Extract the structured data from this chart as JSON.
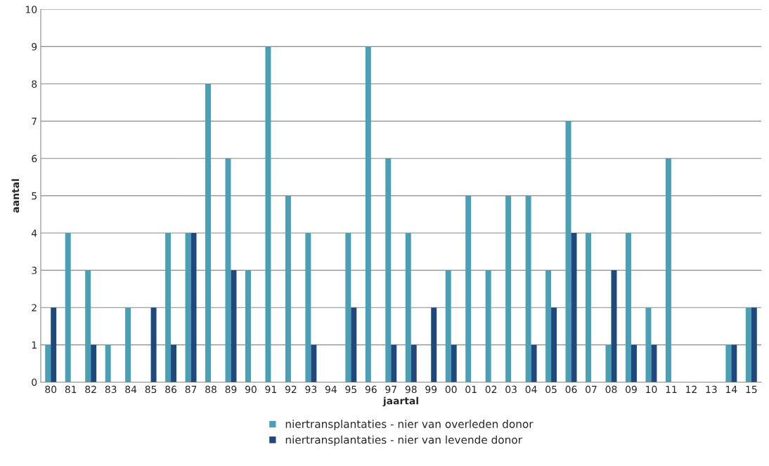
{
  "chart_data": {
    "type": "bar",
    "xlabel": "jaartal",
    "ylabel": "aantal",
    "categories": [
      "80",
      "81",
      "82",
      "83",
      "84",
      "85",
      "86",
      "87",
      "88",
      "89",
      "90",
      "91",
      "92",
      "93",
      "94",
      "95",
      "96",
      "97",
      "98",
      "99",
      "00",
      "01",
      "02",
      "03",
      "04",
      "05",
      "06",
      "07",
      "08",
      "09",
      "10",
      "11",
      "12",
      "13",
      "14",
      "15"
    ],
    "series": [
      {
        "name": "niertransplantaties - nier van overleden donor",
        "color": "#4a9fb5",
        "values": [
          1,
          4,
          3,
          1,
          2,
          0,
          4,
          4,
          8,
          6,
          3,
          9,
          5,
          4,
          0,
          4,
          9,
          6,
          4,
          0,
          3,
          5,
          3,
          5,
          5,
          3,
          7,
          4,
          1,
          4,
          2,
          6,
          0,
          0,
          1,
          2
        ]
      },
      {
        "name": "niertransplantaties - nier van levende donor",
        "color": "#1f497d",
        "values": [
          2,
          0,
          1,
          0,
          0,
          2,
          1,
          4,
          0,
          3,
          0,
          0,
          0,
          1,
          0,
          2,
          0,
          1,
          1,
          2,
          1,
          0,
          0,
          0,
          1,
          2,
          4,
          0,
          3,
          1,
          1,
          0,
          0,
          0,
          1,
          2
        ]
      }
    ],
    "ylim": [
      0,
      10
    ],
    "yticks": [
      0,
      1,
      2,
      3,
      4,
      5,
      6,
      7,
      8,
      9,
      10
    ],
    "grid": "y",
    "legend": "bottom"
  }
}
